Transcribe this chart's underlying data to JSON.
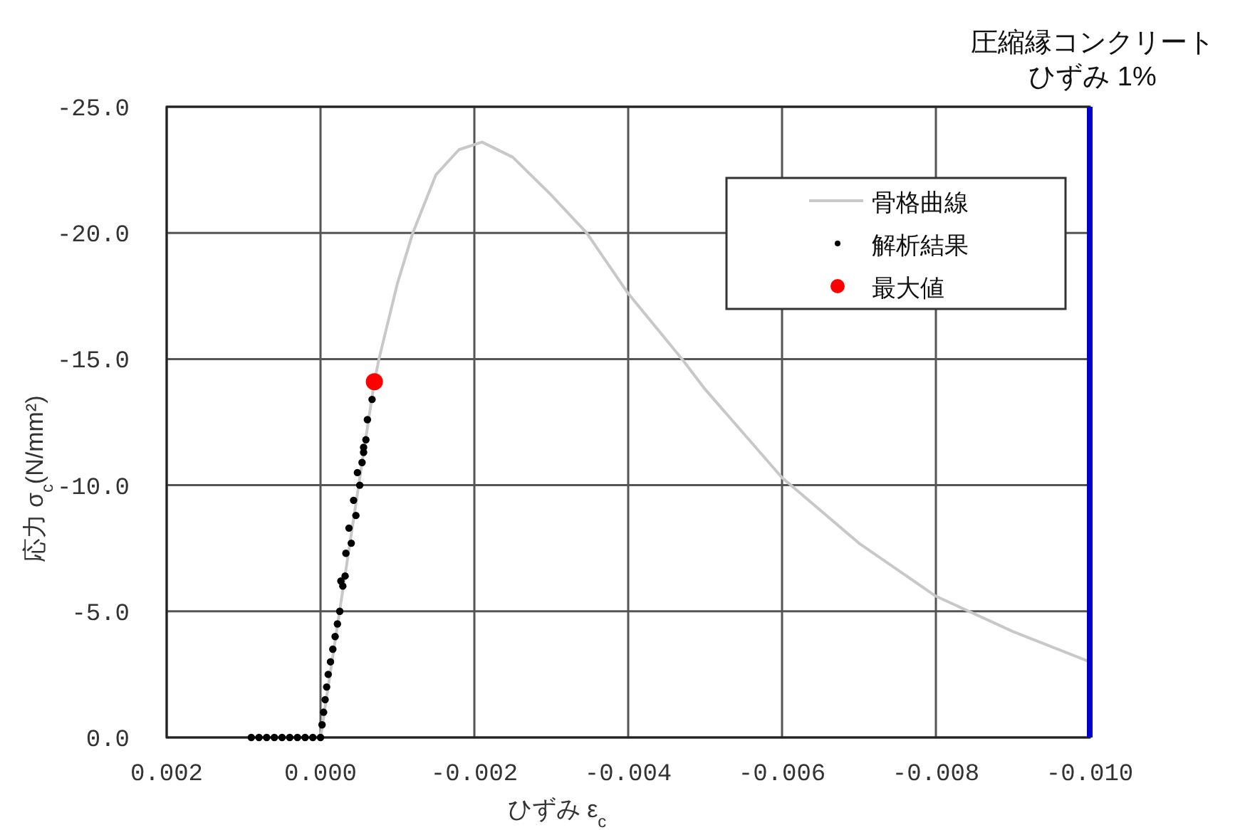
{
  "chart_data": {
    "type": "scatter",
    "xlabel": "ひずみ ε$_{c}$",
    "ylabel": "応力 σ$_{c}$(N/mm²)",
    "xlim": [
      0.002,
      -0.01
    ],
    "xticks": [
      0.002,
      {
        "value": 0,
        "label": "0.000"
      },
      -0.002,
      -0.004,
      -0.006,
      -0.008,
      {
        "value": -0.01,
        "label": "-0.010"
      }
    ],
    "ylim": [
      0,
      -25
    ],
    "yticks": [
      {
        "value": 0,
        "label": "0.0"
      },
      {
        "value": -5,
        "label": "-5.0"
      },
      {
        "value": -10,
        "label": "-10.0"
      },
      {
        "value": -15,
        "label": "-15.0"
      },
      {
        "value": -20,
        "label": "-20.0"
      },
      {
        "value": -25,
        "label": "-25.0"
      }
    ],
    "grid": true,
    "legend": "top right",
    "ref_lines": [
      {
        "axis": "x",
        "value": -0.01,
        "label": "圧縮縁コンクリートひずみ 1%",
        "color": "#0000cc"
      }
    ],
    "series": [
      {
        "name": "骨格曲線",
        "type": "line",
        "color": "#c8c8c8",
        "marker": "none",
        "line_style": "solid",
        "x": [
          0,
          -0.0007,
          -0.00076,
          -0.001,
          -0.0012,
          -0.0015,
          -0.0018,
          -0.0021,
          -0.0025,
          -0.003,
          -0.00346,
          -0.004,
          -0.0047,
          -0.005,
          -0.006,
          -0.007,
          -0.008,
          -0.009,
          -0.01
        ],
        "values": [
          0,
          -14.1,
          -15,
          -18,
          -20,
          -22.3,
          -23.3,
          -23.6,
          -23.0,
          -21.5,
          -20,
          -17.6,
          -15,
          -13.8,
          -10.3,
          -7.7,
          -5.6,
          -4.2,
          -3.0
        ]
      },
      {
        "name": "解析結果",
        "type": "scatter",
        "color": "#000000",
        "marker": "circle",
        "x": [
          0.0009,
          0.0008,
          0.0007,
          0.0006,
          0.0005,
          0.0004,
          0.0003,
          0.0002,
          0.0001,
          0,
          -2e-05,
          -4e-05,
          -6e-05,
          -8e-05,
          -0.0001,
          -0.00013,
          -0.00016,
          -0.00019,
          -0.00022,
          -0.00025,
          -0.00029,
          -0.000265,
          -0.00032,
          -0.00033,
          -0.0004,
          -0.00037,
          -0.00046,
          -0.00043,
          -0.00051,
          -0.00048,
          -0.00054,
          -0.00056,
          -0.00056,
          -0.00059,
          -0.00061,
          -0.00067
        ],
        "values": [
          0,
          0,
          0,
          0,
          0,
          0,
          0,
          0,
          0,
          0,
          -0.5,
          -1,
          -1.5,
          -2,
          -2.5,
          -3,
          -3.5,
          -4,
          -4.5,
          -5,
          -6.0,
          -6.2,
          -6.4,
          -7.3,
          -7.7,
          -8.3,
          -8.8,
          -9.4,
          -10.0,
          -10.5,
          -10.9,
          -11.3,
          -11.5,
          -11.8,
          -12.6,
          -13.4
        ]
      },
      {
        "name": "最大値",
        "type": "scatter",
        "color": "#ff0000",
        "marker": "circle",
        "x": [
          -0.0007
        ],
        "values": [
          -14.1
        ]
      }
    ]
  }
}
